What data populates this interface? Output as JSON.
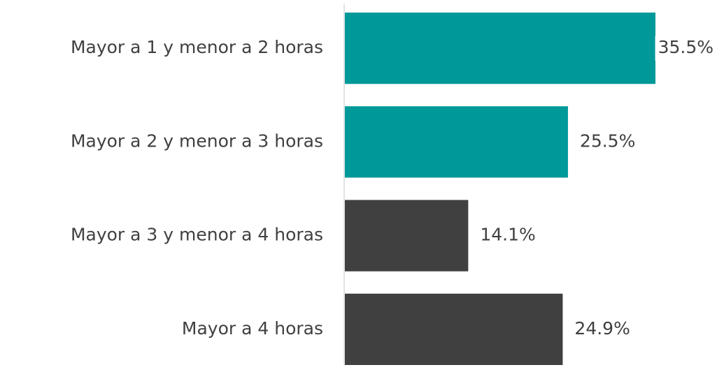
{
  "chart_data": {
    "type": "hbar",
    "categories": [
      "Mayor a 1 y menor a 2 horas",
      "Mayor a 2 y menor a 3 horas",
      "Mayor a 3 y menor a 4 horas",
      "Mayor a 4 horas"
    ],
    "values": [
      35.5,
      25.5,
      14.1,
      24.9
    ],
    "value_labels": [
      "35.5%",
      "25.5%",
      "14.1%",
      "24.9%"
    ],
    "colors": [
      "#009999",
      "#009999",
      "#404040",
      "#404040"
    ]
  }
}
